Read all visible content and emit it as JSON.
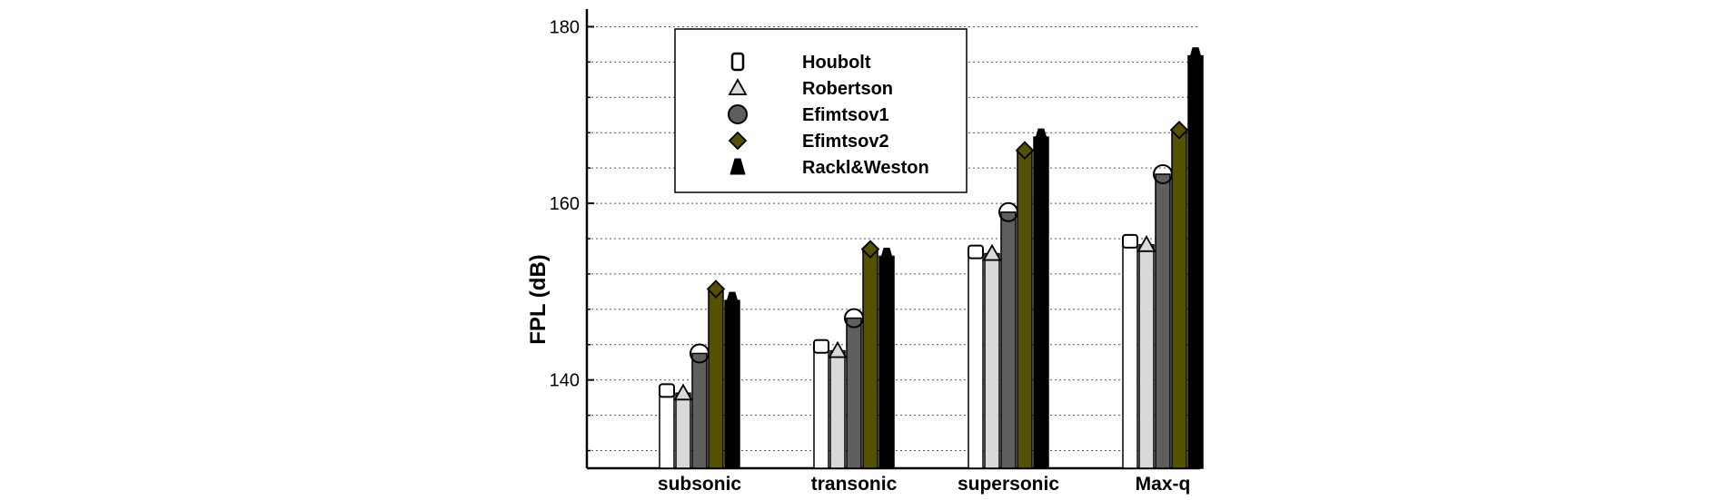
{
  "chart_data": {
    "type": "bar",
    "ylabel": "FPL (dB)",
    "xlabel": "",
    "ylim": [
      130,
      182
    ],
    "yticks": [
      140,
      160,
      180
    ],
    "grid": "horizontal dotted, every 4 dB",
    "legend_position": "top-left",
    "categories": [
      "subsonic",
      "transonic",
      "supersonic",
      "Max-q"
    ],
    "series": [
      {
        "name": "Houbolt",
        "marker": "rounded-square",
        "color": "#ffffff",
        "values": [
          138.8,
          143.8,
          154.5,
          155.7
        ]
      },
      {
        "name": "Robertson",
        "marker": "triangle",
        "color": "#d9d9d9",
        "values": [
          138.5,
          143.3,
          154.3,
          155.3
        ]
      },
      {
        "name": "Efimtsov1",
        "marker": "circle",
        "color": "#5f5f5f",
        "values": [
          143.0,
          147.0,
          159.0,
          163.3
        ]
      },
      {
        "name": "Efimtsov2",
        "marker": "diamond",
        "color": "#545200",
        "values": [
          150.3,
          154.8,
          166.0,
          168.3
        ]
      },
      {
        "name": "Rackl&Weston",
        "marker": "bell",
        "color": "#000000",
        "values": [
          149.0,
          154.0,
          167.5,
          176.7
        ]
      }
    ]
  }
}
